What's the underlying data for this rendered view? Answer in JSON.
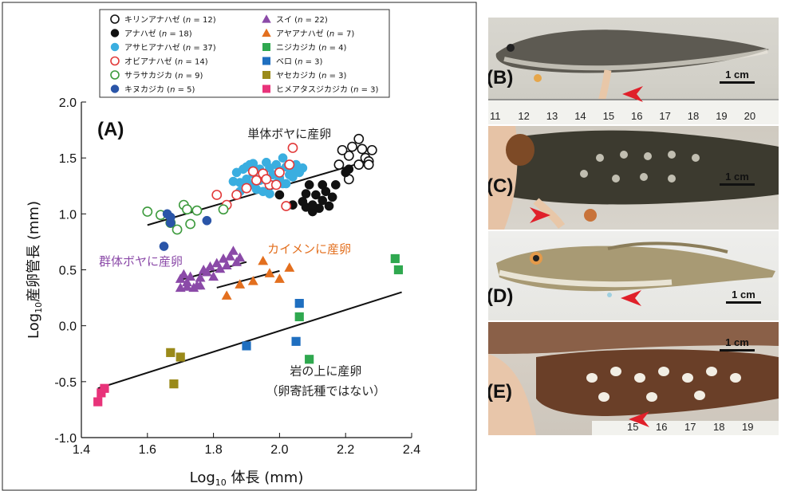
{
  "panel_a": {
    "label": "(A)",
    "chart_data": {
      "type": "scatter",
      "xlabel_main": "Log",
      "xlabel_sub": "10",
      "xlabel_rest": " 体長 (mm)",
      "ylabel_main": "Log",
      "ylabel_sub": "10",
      "ylabel_rest": "産卵管長 (mm)",
      "xlim": [
        1.4,
        2.4
      ],
      "ylim": [
        -1.0,
        2.0
      ],
      "xticks": [
        "1.4",
        "1.6",
        "1.8",
        "2.0",
        "2.2",
        "2.4"
      ],
      "yticks": [
        "2.0",
        "1.5",
        "1.0",
        "0.5",
        "0.0",
        "-0.5",
        "-1.0"
      ],
      "legend_position": "top",
      "annotations": [
        {
          "text": "単体ボヤに産卵",
          "x": 2.03,
          "y": 1.68,
          "color": "#222222"
        },
        {
          "text": "群体ボヤに産卵",
          "x": 1.58,
          "y": 0.54,
          "color": "#8b4aa8"
        },
        {
          "text": "カイメンに産卵",
          "x": 2.09,
          "y": 0.65,
          "color": "#e36f1e"
        },
        {
          "text": "岩の上に産卵",
          "x": 2.14,
          "y": -0.44,
          "color": "#222222"
        },
        {
          "text": "（卵寄託種ではない）",
          "x": 2.14,
          "y": -0.62,
          "color": "#222222"
        }
      ],
      "fit_lines": [
        {
          "x": [
            1.6,
            2.24
          ],
          "y": [
            0.9,
            1.45
          ]
        },
        {
          "x": [
            1.7,
            1.9
          ],
          "y": [
            0.41,
            0.57
          ]
        },
        {
          "x": [
            1.81,
            2.0
          ],
          "y": [
            0.34,
            0.49
          ]
        },
        {
          "x": [
            1.45,
            2.37
          ],
          "y": [
            -0.56,
            0.3
          ]
        }
      ],
      "series": [
        {
          "name": "キリンアナハゼ",
          "n": "n",
          "count": "= 12",
          "marker": "circle-open",
          "color": "#111111",
          "points": [
            [
              2.18,
              1.44
            ],
            [
              2.21,
              1.52
            ],
            [
              2.22,
              1.6
            ],
            [
              2.24,
              1.67
            ],
            [
              2.25,
              1.58
            ],
            [
              2.26,
              1.5
            ],
            [
              2.27,
              1.47
            ],
            [
              2.28,
              1.57
            ],
            [
              2.24,
              1.44
            ],
            [
              2.27,
              1.44
            ],
            [
              2.19,
              1.57
            ],
            [
              2.21,
              1.31
            ]
          ]
        },
        {
          "name": "アナハゼ",
          "n": "n",
          "count": "= 18",
          "marker": "circle-filled",
          "color": "#111111",
          "points": [
            [
              2.0,
              1.17
            ],
            [
              2.04,
              1.08
            ],
            [
              2.08,
              1.06
            ],
            [
              2.1,
              1.02
            ],
            [
              2.12,
              1.05
            ],
            [
              2.13,
              1.12
            ],
            [
              2.14,
              1.2
            ],
            [
              2.13,
              1.26
            ],
            [
              2.11,
              1.17
            ],
            [
              2.1,
              1.08
            ],
            [
              2.15,
              1.07
            ],
            [
              2.16,
              1.15
            ],
            [
              2.08,
              1.18
            ],
            [
              2.09,
              1.26
            ],
            [
              2.07,
              1.11
            ],
            [
              2.2,
              1.37
            ],
            [
              2.21,
              1.4
            ],
            [
              2.17,
              1.26
            ]
          ]
        },
        {
          "name": "アサヒアナハゼ",
          "n": "n",
          "count": "= 37",
          "marker": "circle-filled",
          "color": "#3aaee0",
          "points": [
            [
              1.86,
              1.29
            ],
            [
              1.87,
              1.37
            ],
            [
              1.88,
              1.28
            ],
            [
              1.89,
              1.4
            ],
            [
              1.9,
              1.31
            ],
            [
              1.91,
              1.44
            ],
            [
              1.92,
              1.36
            ],
            [
              1.93,
              1.29
            ],
            [
              1.94,
              1.4
            ],
            [
              1.95,
              1.34
            ],
            [
              1.96,
              1.46
            ],
            [
              1.97,
              1.41
            ],
            [
              1.98,
              1.35
            ],
            [
              1.99,
              1.44
            ],
            [
              2.0,
              1.39
            ],
            [
              2.01,
              1.5
            ],
            [
              2.02,
              1.42
            ],
            [
              2.03,
              1.35
            ],
            [
              2.04,
              1.4
            ],
            [
              2.05,
              1.44
            ],
            [
              2.06,
              1.37
            ],
            [
              2.07,
              1.41
            ],
            [
              1.93,
              1.22
            ],
            [
              1.95,
              1.2
            ],
            [
              1.97,
              1.18
            ],
            [
              1.99,
              1.27
            ],
            [
              2.01,
              1.27
            ],
            [
              1.88,
              1.2
            ],
            [
              1.9,
              1.42
            ],
            [
              1.92,
              1.45
            ],
            [
              1.94,
              1.3
            ],
            [
              1.96,
              1.3
            ],
            [
              1.98,
              1.26
            ],
            [
              2.0,
              1.32
            ],
            [
              2.02,
              1.27
            ],
            [
              2.04,
              1.33
            ],
            [
              1.91,
              1.26
            ]
          ]
        },
        {
          "name": "オビアナハゼ",
          "n": "n",
          "count": "= 14",
          "marker": "circle-open",
          "color": "#e23a3a",
          "points": [
            [
              1.81,
              1.17
            ],
            [
              1.84,
              1.08
            ],
            [
              1.87,
              1.17
            ],
            [
              1.9,
              1.23
            ],
            [
              1.92,
              1.38
            ],
            [
              1.95,
              1.36
            ],
            [
              1.97,
              1.26
            ],
            [
              1.99,
              1.26
            ],
            [
              2.0,
              1.37
            ],
            [
              2.02,
              1.07
            ],
            [
              2.04,
              1.59
            ],
            [
              2.03,
              1.44
            ],
            [
              1.96,
              1.31
            ],
            [
              1.93,
              1.3
            ]
          ]
        },
        {
          "name": "サラサカジカ",
          "n": "n",
          "count": "= 9",
          "marker": "circle-open",
          "color": "#3c9a3c",
          "points": [
            [
              1.6,
              1.02
            ],
            [
              1.64,
              0.99
            ],
            [
              1.67,
              0.92
            ],
            [
              1.69,
              0.86
            ],
            [
              1.71,
              1.08
            ],
            [
              1.72,
              1.04
            ],
            [
              1.73,
              0.91
            ],
            [
              1.75,
              1.03
            ],
            [
              1.83,
              1.04
            ]
          ]
        },
        {
          "name": "キヌカジカ",
          "n": "n",
          "count": "= 5",
          "marker": "circle-filled",
          "color": "#2a55a8",
          "points": [
            [
              1.66,
              1.0
            ],
            [
              1.67,
              0.92
            ],
            [
              1.78,
              0.94
            ],
            [
              1.65,
              0.71
            ],
            [
              1.67,
              0.97
            ]
          ]
        },
        {
          "name": "スイ",
          "n": "n",
          "count": "= 22",
          "marker": "triangle",
          "color": "#8b4aa8",
          "points": [
            [
              1.7,
              0.42
            ],
            [
              1.71,
              0.46
            ],
            [
              1.72,
              0.39
            ],
            [
              1.73,
              0.44
            ],
            [
              1.74,
              0.34
            ],
            [
              1.75,
              0.36
            ],
            [
              1.76,
              0.43
            ],
            [
              1.77,
              0.5
            ],
            [
              1.78,
              0.48
            ],
            [
              1.79,
              0.53
            ],
            [
              1.8,
              0.44
            ],
            [
              1.81,
              0.56
            ],
            [
              1.82,
              0.51
            ],
            [
              1.83,
              0.6
            ],
            [
              1.84,
              0.54
            ],
            [
              1.85,
              0.62
            ],
            [
              1.86,
              0.67
            ],
            [
              1.87,
              0.57
            ],
            [
              1.88,
              0.61
            ],
            [
              1.72,
              0.35
            ],
            [
              1.7,
              0.34
            ],
            [
              1.76,
              0.36
            ]
          ]
        },
        {
          "name": "アヤアナハゼ",
          "n": "n",
          "count": "= 7",
          "marker": "triangle",
          "color": "#e36f1e",
          "points": [
            [
              1.84,
              0.27
            ],
            [
              1.88,
              0.37
            ],
            [
              1.92,
              0.4
            ],
            [
              1.95,
              0.58
            ],
            [
              1.97,
              0.47
            ],
            [
              2.0,
              0.42
            ],
            [
              2.03,
              0.52
            ]
          ]
        },
        {
          "name": "ニジカジカ",
          "n": "n",
          "count": "= 4",
          "marker": "square",
          "color": "#2fa84f",
          "points": [
            [
              2.06,
              0.08
            ],
            [
              2.09,
              -0.3
            ],
            [
              2.35,
              0.6
            ],
            [
              2.36,
              0.5
            ]
          ]
        },
        {
          "name": "ベロ",
          "n": "n",
          "count": "= 3",
          "marker": "square",
          "color": "#1f6fc0",
          "points": [
            [
              1.9,
              -0.18
            ],
            [
              2.05,
              -0.14
            ],
            [
              2.06,
              0.2
            ]
          ]
        },
        {
          "name": "ヤセカジカ",
          "n": "n",
          "count": "= 3",
          "marker": "square",
          "color": "#9a8a1a",
          "points": [
            [
              1.67,
              -0.24
            ],
            [
              1.7,
              -0.28
            ],
            [
              1.68,
              -0.52
            ]
          ]
        },
        {
          "name": "ヒメアタスジカジカ",
          "n": "n",
          "count": "= 3",
          "marker": "square",
          "color": "#e8337a",
          "points": [
            [
              1.45,
              -0.68
            ],
            [
              1.46,
              -0.6
            ],
            [
              1.47,
              -0.56
            ]
          ]
        }
      ]
    }
  },
  "photos": {
    "panel_b": {
      "label": "(B)",
      "scale": "1 cm",
      "ruler_numbers": [
        "11",
        "12",
        "13",
        "14",
        "15",
        "16",
        "17",
        "18",
        "19",
        "20"
      ]
    },
    "panel_c": {
      "label": "(C)",
      "scale": "1 cm"
    },
    "panel_d": {
      "label": "(D)",
      "scale": "1 cm"
    },
    "panel_e": {
      "label": "(E)",
      "scale": "1 cm",
      "ruler_numbers": [
        "15",
        "16",
        "17",
        "18",
        "19"
      ]
    },
    "colors": {
      "arrow": "#e0202a"
    }
  }
}
